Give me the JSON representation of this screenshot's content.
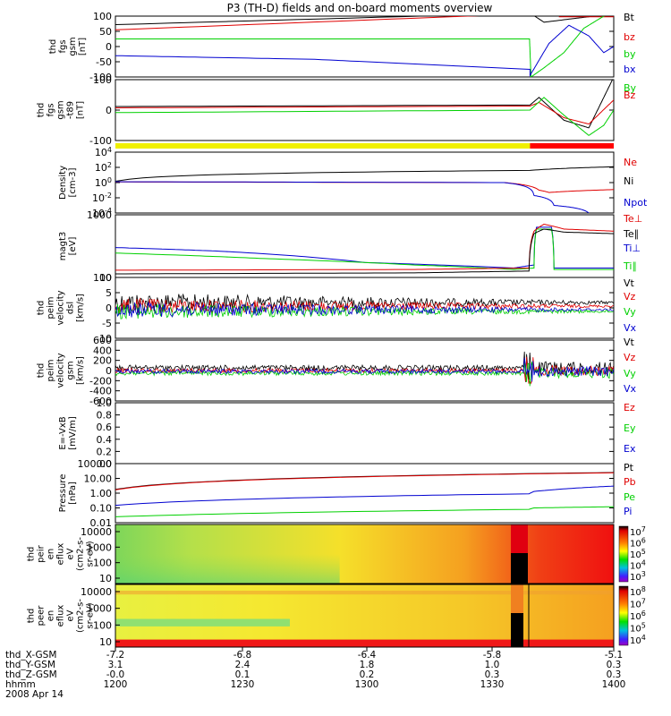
{
  "title": "P3 (TH-D) fields and on-board moments overview",
  "colors": {
    "black": "#000000",
    "red": "#e00000",
    "green": "#00d000",
    "blue": "#0000d0",
    "yellow": "#f0f000",
    "bar_red": "#ff0000"
  },
  "chart_data": [
    {
      "type": "line",
      "id": "p1",
      "ylabel": [
        "thd",
        "fgs",
        "gsm",
        "[nT]"
      ],
      "ylim": [
        -100,
        100
      ],
      "ticks": [
        "100",
        "50",
        "0",
        "-50",
        "-100"
      ],
      "legend": [
        {
          "name": "Bt",
          "color": "black"
        },
        {
          "name": "bz",
          "color": "red"
        },
        {
          "name": "by",
          "color": "green"
        },
        {
          "name": "bx",
          "color": "blue"
        }
      ],
      "series": [
        {
          "name": "Bt",
          "color": "black",
          "x": [
            0,
            0.832
          ],
          "y": [
            72,
            110
          ]
        },
        {
          "name": "Bt",
          "color": "black",
          "x": [
            0.832,
            0.86,
            0.95,
            1.0
          ],
          "y": [
            110,
            80,
            98,
            110
          ]
        },
        {
          "name": "bz",
          "color": "red",
          "x": [
            0,
            0.832,
            0.84
          ],
          "y": [
            55,
            108,
            110
          ]
        },
        {
          "name": "bz",
          "color": "red",
          "x": [
            0.89,
            1.0
          ],
          "y": [
            98,
            98
          ]
        },
        {
          "name": "by",
          "color": "green",
          "x": [
            0,
            0.831,
            0.834,
            0.86,
            0.9,
            0.94,
            0.98,
            1.0
          ],
          "y": [
            25,
            25,
            -100,
            -70,
            -20,
            60,
            100,
            110
          ]
        },
        {
          "name": "bx",
          "color": "blue",
          "x": [
            0,
            0.4,
            0.832,
            0.832,
            0.87,
            0.91,
            0.95,
            0.98,
            1.0
          ],
          "y": [
            -30,
            -42,
            -75,
            -95,
            10,
            70,
            35,
            -20,
            0
          ]
        }
      ]
    },
    {
      "type": "line",
      "id": "p2",
      "ylabel": [
        "thd",
        "fgs",
        "gsm",
        "-t89",
        "[nT]"
      ],
      "ylim": [
        -120,
        120
      ],
      "ticks": [
        "100",
        "0",
        "-100"
      ],
      "legend": [
        {
          "name": "By",
          "color": "green"
        },
        {
          "name": "Bz",
          "color": "red"
        }
      ],
      "series": [
        {
          "name": "Bt",
          "color": "black",
          "x": [
            0,
            0.832,
            0.85,
            0.9,
            0.95,
            1.0
          ],
          "y": [
            14,
            20,
            50,
            -40,
            -70,
            130
          ]
        },
        {
          "name": "Bz",
          "color": "red",
          "x": [
            0,
            0.832,
            0.85,
            0.9,
            0.95,
            1.0
          ],
          "y": [
            9,
            16,
            30,
            -30,
            -55,
            40
          ]
        },
        {
          "name": "By",
          "color": "green",
          "x": [
            0,
            0.832,
            0.86,
            0.9,
            0.95,
            0.98,
            1.0
          ],
          "y": [
            -10,
            0,
            50,
            -20,
            -100,
            -60,
            0
          ]
        }
      ]
    },
    {
      "type": "line",
      "id": "p3",
      "log": true,
      "ylabel": [
        "Density",
        "[cm-3]"
      ],
      "ylim": [
        0.0001,
        10000
      ],
      "ticks": [
        "10^4",
        "10^2",
        "10^0",
        "10^-2",
        "10^-4"
      ],
      "legend": [
        {
          "name": "Ne",
          "color": "red"
        },
        {
          "name": "Ni",
          "color": "black"
        },
        {
          "name": "Npot",
          "color": "blue"
        }
      ],
      "series": [
        {
          "name": "Ni",
          "color": "black",
          "x": [
            0,
            0.832,
            1.0
          ],
          "y": [
            1.5,
            40,
            120
          ]
        },
        {
          "name": "Ne",
          "color": "red",
          "x": [
            0,
            0.78,
            0.85,
            0.87,
            1.0
          ],
          "y": [
            1.2,
            1.0,
            0.1,
            0.05,
            0.12
          ]
        },
        {
          "name": "Npot",
          "color": "blue",
          "x": [
            0,
            0.78,
            0.84,
            0.88,
            0.95
          ],
          "y": [
            1.3,
            1.0,
            0.02,
            0.001,
            0.0001
          ]
        }
      ]
    },
    {
      "type": "line",
      "id": "p4",
      "log": true,
      "ylabel": [
        "magt3",
        "[eV]"
      ],
      "ylim": [
        100,
        10000
      ],
      "ticks": [
        "1000",
        "100"
      ],
      "legend": [
        {
          "name": "Te⊥",
          "color": "red"
        },
        {
          "name": "Te∥",
          "color": "black"
        },
        {
          "name": "Ti⊥",
          "color": "blue"
        },
        {
          "name": "Ti∥",
          "color": "green"
        }
      ],
      "series": [
        {
          "name": "Ti⊥",
          "color": "blue",
          "x": [
            0,
            0.2,
            0.5,
            0.8,
            0.84,
            0.845,
            0.875,
            0.88,
            1.0
          ],
          "y": [
            900,
            700,
            300,
            200,
            250,
            4000,
            4000,
            200,
            200
          ]
        },
        {
          "name": "Ti∥",
          "color": "green",
          "x": [
            0,
            0.3,
            0.6,
            0.8,
            0.84,
            0.845,
            0.875,
            0.88,
            1.0
          ],
          "y": [
            600,
            400,
            250,
            180,
            200,
            3500,
            3500,
            180,
            180
          ]
        },
        {
          "name": "Te⊥",
          "color": "red",
          "x": [
            0,
            0.6,
            0.83,
            0.84,
            0.86,
            0.9,
            1.0
          ],
          "y": [
            170,
            180,
            200,
            3000,
            5000,
            3500,
            3000
          ]
        },
        {
          "name": "Te∥",
          "color": "black",
          "x": [
            0,
            0.6,
            0.83,
            0.84,
            0.86,
            0.9,
            1.0
          ],
          "y": [
            130,
            140,
            160,
            2500,
            3500,
            2800,
            2500
          ]
        }
      ]
    },
    {
      "type": "line",
      "id": "p5",
      "ylabel": [
        "thd",
        "peim",
        "velocity",
        "dsl",
        "[km/s]"
      ],
      "ylim": [
        -10,
        10
      ],
      "ticks": [
        "10",
        "5",
        "0",
        "-5",
        "-10"
      ],
      "legend": [
        {
          "name": "Vt",
          "color": "black"
        },
        {
          "name": "Vz",
          "color": "red"
        },
        {
          "name": "Vy",
          "color": "green"
        },
        {
          "name": "Vx",
          "color": "blue"
        }
      ],
      "series": []
    },
    {
      "type": "line",
      "id": "p6",
      "ylabel": [
        "thd",
        "peim",
        "velocity",
        "gsm",
        "[km/s]"
      ],
      "ylim": [
        -600,
        600
      ],
      "ticks": [
        "600",
        "400",
        "200",
        "0",
        "-200",
        "-400",
        "-600"
      ],
      "legend": [
        {
          "name": "Vt",
          "color": "black"
        },
        {
          "name": "Vz",
          "color": "red"
        },
        {
          "name": "Vy",
          "color": "green"
        },
        {
          "name": "Vx",
          "color": "blue"
        }
      ],
      "series": []
    },
    {
      "type": "line",
      "id": "p7",
      "ylabel": [
        "E=-VxB",
        "[mV/m]"
      ],
      "ylim": [
        0,
        1
      ],
      "ticks": [
        "1.0",
        "0.8",
        "0.6",
        "0.4",
        "0.2",
        "0.0"
      ],
      "legend": [
        {
          "name": "Ez",
          "color": "red"
        },
        {
          "name": "Ey",
          "color": "green"
        },
        {
          "name": "Ex",
          "color": "blue"
        }
      ],
      "series": []
    },
    {
      "type": "line",
      "id": "p8",
      "log": true,
      "ylabel": [
        "Pressure",
        "[nPa]"
      ],
      "ylim": [
        0.01,
        100
      ],
      "ticks": [
        "100.00",
        "10.00",
        "1.00",
        "0.10",
        "0.01"
      ],
      "legend": [
        {
          "name": "Pt",
          "color": "black"
        },
        {
          "name": "Pb",
          "color": "red"
        },
        {
          "name": "Pe",
          "color": "green"
        },
        {
          "name": "Pi",
          "color": "blue"
        }
      ],
      "series": [
        {
          "name": "Pt",
          "color": "black",
          "x": [
            0,
            1.0
          ],
          "y": [
            1.8,
            25
          ]
        },
        {
          "name": "Pb",
          "color": "red",
          "x": [
            0,
            1.0
          ],
          "y": [
            1.7,
            24
          ]
        },
        {
          "name": "Pi",
          "color": "blue",
          "x": [
            0,
            0.83,
            0.84,
            1.0
          ],
          "y": [
            0.15,
            0.9,
            1.3,
            3
          ]
        },
        {
          "name": "Pe",
          "color": "green",
          "x": [
            0,
            0.83,
            0.84,
            1.0
          ],
          "y": [
            0.025,
            0.08,
            0.1,
            0.12
          ]
        }
      ]
    },
    {
      "type": "heatmap",
      "id": "p9",
      "ylabel": [
        "thd",
        "peir",
        "en",
        "eflux",
        "eV",
        "(cm2-s-",
        "sr-eV)"
      ],
      "yticks": [
        "10000",
        "1000",
        "100",
        "10"
      ],
      "colorbar": [
        "10^7",
        "10^6",
        "10^5",
        "10^4",
        "10^3"
      ]
    },
    {
      "type": "heatmap",
      "id": "p10",
      "ylabel": [
        "thd",
        "peer",
        "en",
        "eflux",
        "eV",
        "(cm2-s-",
        "sr-eV)"
      ],
      "yticks": [
        "10000",
        "1000",
        "100",
        "10"
      ],
      "colorbar": [
        "10^8",
        "10^7",
        "10^6",
        "10^5",
        "10^4"
      ]
    }
  ],
  "xaxis": {
    "rows": [
      {
        "label": "thd_X-GSM",
        "values": [
          "-7.2",
          "-6.8",
          "-6.4",
          "-5.8",
          "-5.1"
        ]
      },
      {
        "label": "thd_Y-GSM",
        "values": [
          "3.1",
          "2.4",
          "1.8",
          "1.0",
          "0.3"
        ]
      },
      {
        "label": "thd_Z-GSM",
        "values": [
          "-0.0",
          "0.1",
          "0.2",
          "0.3",
          "0.3"
        ]
      },
      {
        "label": "hhmm",
        "values": [
          "1200",
          "1230",
          "1300",
          "1330",
          "1400"
        ]
      }
    ],
    "date": "2008 Apr 14"
  },
  "bar": {
    "yellow_until": 0.832
  }
}
